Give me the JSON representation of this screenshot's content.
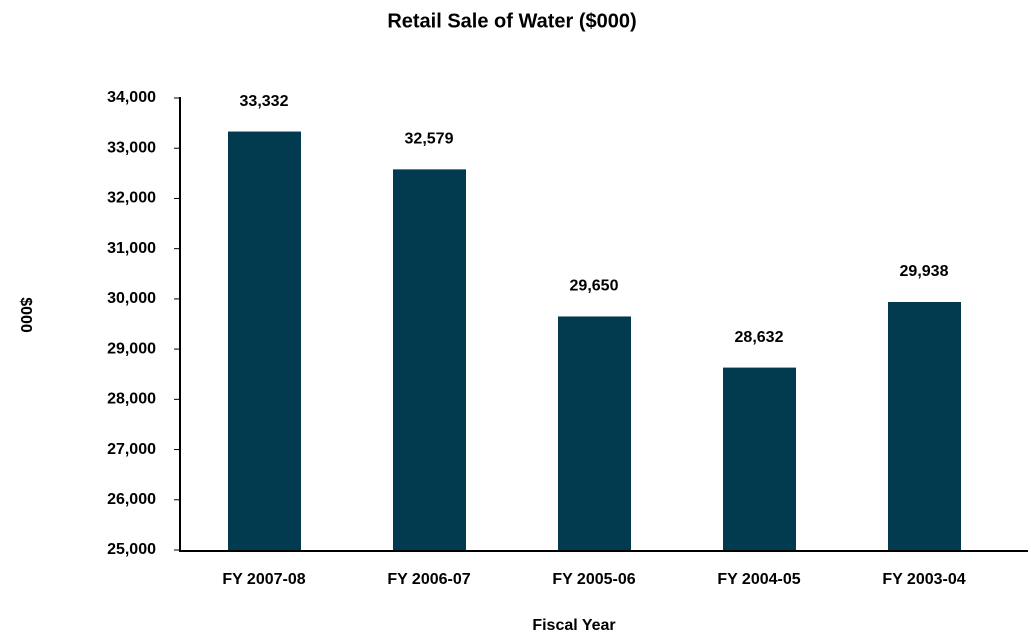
{
  "chart_data": {
    "type": "bar",
    "title": "Retail Sale of Water ($000)",
    "x_label": "Fiscal Year",
    "y_label": "$000",
    "categories": [
      "FY 2007-08",
      "FY 2006-07",
      "FY 2005-06",
      "FY 2004-05",
      "FY 2003-04"
    ],
    "values": [
      33332,
      32579,
      29650,
      28632,
      29938
    ],
    "value_labels": [
      "33,332",
      "32,579",
      "29,650",
      "28,632",
      "29,938"
    ],
    "color": "#023a4f",
    "ylim": [
      25000,
      34000
    ],
    "yticks": [
      {
        "value": 25000,
        "label": "25,000"
      },
      {
        "value": 26000,
        "label": "26,000"
      },
      {
        "value": 27000,
        "label": "27,000"
      },
      {
        "value": 28000,
        "label": "28,000"
      },
      {
        "value": 29000,
        "label": "29,000"
      },
      {
        "value": 30000,
        "label": "30,000"
      },
      {
        "value": 31000,
        "label": "31,000"
      },
      {
        "value": 32000,
        "label": "32,000"
      },
      {
        "value": 33000,
        "label": "33,000"
      },
      {
        "value": 34000,
        "label": "34,000"
      }
    ],
    "grid": false
  }
}
